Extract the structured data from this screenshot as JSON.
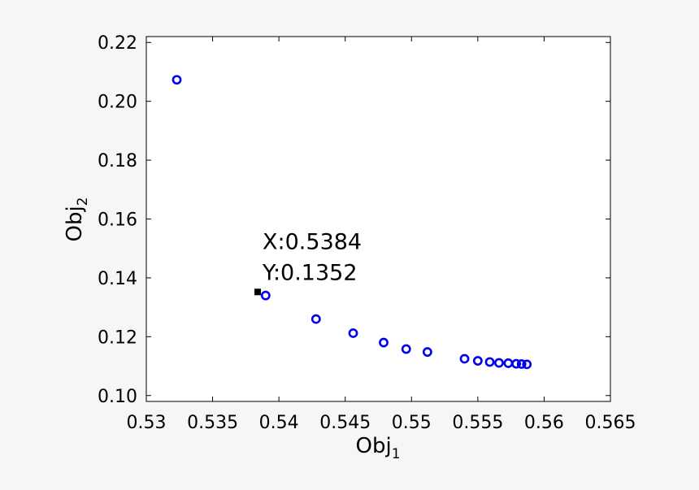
{
  "chart_data": {
    "type": "scatter",
    "xlabel": {
      "base": "Obj",
      "sub": "1"
    },
    "ylabel": {
      "base": "Obj",
      "sub": "2"
    },
    "xlim": [
      0.53,
      0.565
    ],
    "ylim": [
      0.098,
      0.222
    ],
    "x_ticks": [
      0.53,
      0.535,
      0.54,
      0.545,
      0.55,
      0.555,
      0.56,
      0.565
    ],
    "x_tick_labels": [
      "0.53",
      "0.535",
      "0.54",
      "0.545",
      "0.55",
      "0.555",
      "0.56",
      "0.565"
    ],
    "y_ticks": [
      0.1,
      0.12,
      0.14,
      0.16,
      0.18,
      0.2,
      0.22
    ],
    "y_tick_labels": [
      "0.10",
      "0.12",
      "0.14",
      "0.16",
      "0.18",
      "0.20",
      "0.22"
    ],
    "grid": false,
    "marker_color": "#0000ee",
    "points": [
      {
        "x": 0.5323,
        "y": 0.2073
      },
      {
        "x": 0.539,
        "y": 0.134
      },
      {
        "x": 0.5428,
        "y": 0.126
      },
      {
        "x": 0.5456,
        "y": 0.1212
      },
      {
        "x": 0.5479,
        "y": 0.118
      },
      {
        "x": 0.5496,
        "y": 0.1158
      },
      {
        "x": 0.5512,
        "y": 0.1148
      },
      {
        "x": 0.554,
        "y": 0.1125
      },
      {
        "x": 0.555,
        "y": 0.1118
      },
      {
        "x": 0.5559,
        "y": 0.1114
      },
      {
        "x": 0.5566,
        "y": 0.1111
      },
      {
        "x": 0.5573,
        "y": 0.111
      },
      {
        "x": 0.5579,
        "y": 0.1108
      },
      {
        "x": 0.5583,
        "y": 0.1107
      },
      {
        "x": 0.5587,
        "y": 0.1106
      }
    ],
    "datatip": {
      "x": 0.5384,
      "y": 0.1352,
      "line1": "X:0.5384",
      "line2": "Y:0.1352",
      "marker_color": "#000000"
    }
  }
}
